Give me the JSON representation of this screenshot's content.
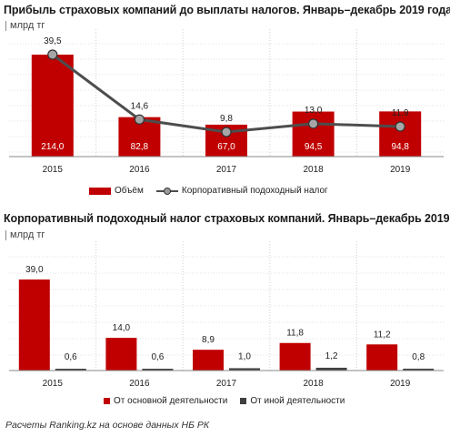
{
  "chart_data": [
    {
      "type": "bar",
      "title": "Прибыль страховых компаний до выплаты  налогов. Январь–декабрь 2019 года",
      "unit": "млрд тг",
      "categories": [
        "2015",
        "2016",
        "2017",
        "2018",
        "2019"
      ],
      "series": [
        {
          "name": "Объём",
          "type": "bar",
          "values": [
            214.0,
            82.8,
            67.0,
            94.5,
            94.8
          ],
          "labels": [
            "214,0",
            "82,8",
            "67,0",
            "94,5",
            "94,8"
          ],
          "color": "#c00000"
        },
        {
          "name": "Корпоративный подоходный налог",
          "type": "line",
          "values": [
            39.5,
            14.6,
            9.8,
            13.0,
            11.9
          ],
          "labels": [
            "39,5",
            "14,6",
            "9,8",
            "13,0",
            "11,9"
          ],
          "color": "#4d4d4d"
        }
      ],
      "legend_position": "bottom"
    },
    {
      "type": "bar",
      "title": "Корпоративный подоходный налог страховых компаний. Январь–декабрь 2019",
      "unit": "млрд тг",
      "categories": [
        "2015",
        "2016",
        "2017",
        "2018",
        "2019"
      ],
      "series": [
        {
          "name": "От основной деятельности",
          "values": [
            39.0,
            14.0,
            8.9,
            11.8,
            11.2
          ],
          "labels": [
            "39,0",
            "14,0",
            "8,9",
            "11,8",
            "11,2"
          ],
          "color": "#c00000"
        },
        {
          "name": "От иной деятельности",
          "values": [
            0.6,
            0.6,
            1.0,
            1.2,
            0.8
          ],
          "labels": [
            "0,6",
            "0,6",
            "1,0",
            "1,2",
            "0,8"
          ],
          "color": "#404040"
        }
      ],
      "legend_position": "bottom"
    }
  ],
  "source": "Расчеты Ranking.kz на основе данных  НБ РК"
}
